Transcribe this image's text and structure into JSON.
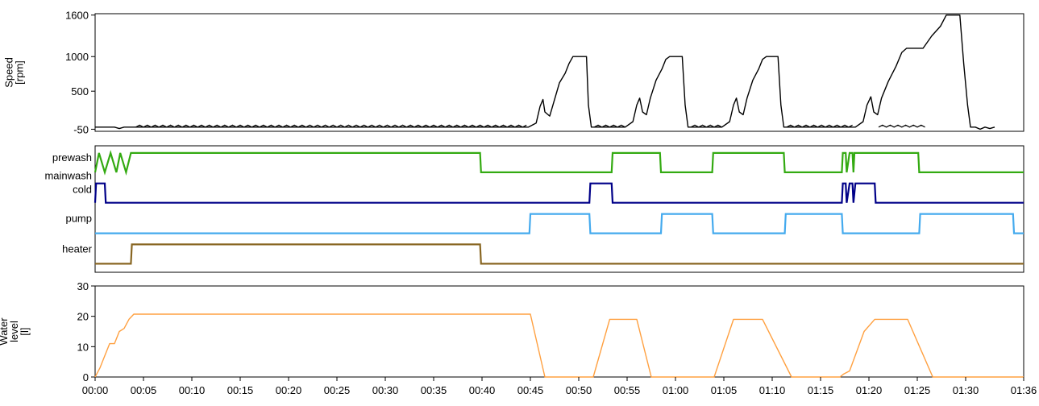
{
  "chart_data": [
    {
      "type": "line",
      "ylabel_lines": [
        "Speed",
        "[rpm]"
      ],
      "yticks": [
        {
          "value": 1600,
          "label": "1600"
        },
        {
          "value": 1000,
          "label": "1000"
        },
        {
          "value": 500,
          "label": "500"
        },
        {
          "value": -50,
          "label": "-50"
        }
      ],
      "xlim": [
        0,
        96
      ],
      "ylim": [
        -80,
        1620
      ],
      "colors": {
        "line": "#000000"
      },
      "series": [
        {
          "points": [
            [
              0,
              -20
            ],
            [
              2,
              -20
            ],
            [
              2.5,
              -40
            ],
            [
              3,
              -20
            ],
            [
              4,
              -20
            ],
            [
              44.8,
              -20
            ],
            [
              45.6,
              40
            ],
            [
              46,
              280
            ],
            [
              46.3,
              380
            ],
            [
              46.5,
              200
            ],
            [
              47,
              140
            ],
            [
              47.5,
              380
            ],
            [
              48,
              620
            ],
            [
              48.6,
              760
            ],
            [
              49,
              900
            ],
            [
              49.4,
              1000
            ],
            [
              50.8,
              1000
            ],
            [
              51,
              300
            ],
            [
              51.3,
              -20
            ],
            [
              54.8,
              -20
            ],
            [
              55.6,
              60
            ],
            [
              56,
              300
            ],
            [
              56.3,
              400
            ],
            [
              56.6,
              200
            ],
            [
              57,
              160
            ],
            [
              57.4,
              400
            ],
            [
              58,
              660
            ],
            [
              58.6,
              820
            ],
            [
              59,
              960
            ],
            [
              59.4,
              1000
            ],
            [
              60.7,
              1000
            ],
            [
              61,
              300
            ],
            [
              61.3,
              -20
            ],
            [
              64.8,
              -20
            ],
            [
              65.6,
              60
            ],
            [
              66,
              300
            ],
            [
              66.3,
              400
            ],
            [
              66.6,
              200
            ],
            [
              67,
              160
            ],
            [
              67.4,
              400
            ],
            [
              68,
              660
            ],
            [
              68.6,
              820
            ],
            [
              69,
              960
            ],
            [
              69.4,
              1000
            ],
            [
              70.6,
              1000
            ],
            [
              70.9,
              300
            ],
            [
              71.2,
              -20
            ],
            [
              78.6,
              -20
            ],
            [
              79.4,
              60
            ],
            [
              79.8,
              300
            ],
            [
              80.2,
              420
            ],
            [
              80.5,
              200
            ],
            [
              80.9,
              160
            ],
            [
              81.3,
              400
            ],
            [
              82,
              640
            ],
            [
              82.8,
              860
            ],
            [
              83.4,
              1060
            ],
            [
              83.9,
              1120
            ],
            [
              85.6,
              1120
            ],
            [
              86.5,
              1300
            ],
            [
              87.4,
              1440
            ],
            [
              88,
              1600
            ],
            [
              89.4,
              1600
            ],
            [
              89.8,
              900
            ],
            [
              90.2,
              300
            ],
            [
              90.5,
              -20
            ],
            [
              91,
              -20
            ],
            [
              91.5,
              -50
            ],
            [
              92,
              -20
            ],
            [
              92.5,
              -40
            ],
            [
              93,
              -20
            ]
          ]
        }
      ]
    },
    {
      "type": "line",
      "ylim": [
        -1,
        1
      ],
      "xlim": [
        0,
        96
      ],
      "channels": [
        {
          "name": "prewash",
          "label_lines": [
            "prewash"
          ],
          "color": "#33aa11",
          "transitions": [
            [
              0,
              0
            ],
            [
              0.4,
              1
            ],
            [
              1,
              0
            ],
            [
              1.6,
              1
            ],
            [
              2.2,
              0
            ],
            [
              2.6,
              1
            ],
            [
              3.2,
              0
            ],
            [
              3.7,
              1
            ],
            [
              39.8,
              1
            ],
            [
              39.9,
              0
            ],
            [
              53.4,
              0
            ],
            [
              53.5,
              1
            ],
            [
              58.4,
              1
            ],
            [
              58.5,
              0
            ],
            [
              63.8,
              0
            ],
            [
              63.9,
              1
            ],
            [
              71.2,
              1
            ],
            [
              71.3,
              0
            ],
            [
              77.2,
              0
            ],
            [
              77.3,
              1
            ],
            [
              77.6,
              1
            ],
            [
              77.7,
              0
            ],
            [
              78,
              1
            ],
            [
              78.3,
              1
            ],
            [
              78.4,
              0
            ],
            [
              78.5,
              1
            ],
            [
              85.1,
              1
            ],
            [
              85.2,
              0
            ],
            [
              96,
              0
            ]
          ]
        },
        {
          "name": "mainwash cold",
          "label_lines": [
            "mainwash",
            "cold"
          ],
          "color": "#000088",
          "transitions": [
            [
              0,
              0
            ],
            [
              0.1,
              1
            ],
            [
              1,
              1
            ],
            [
              1.1,
              0
            ],
            [
              51.1,
              0
            ],
            [
              51.2,
              1
            ],
            [
              53.4,
              1
            ],
            [
              53.5,
              0
            ],
            [
              77.2,
              0
            ],
            [
              77.3,
              1
            ],
            [
              77.6,
              1
            ],
            [
              77.7,
              0
            ],
            [
              78,
              1
            ],
            [
              78.3,
              1
            ],
            [
              78.4,
              0
            ],
            [
              78.6,
              1
            ],
            [
              80.6,
              1
            ],
            [
              80.7,
              0
            ],
            [
              96,
              0
            ]
          ]
        },
        {
          "name": "pump",
          "label_lines": [
            "pump"
          ],
          "color": "#44aaee",
          "transitions": [
            [
              0,
              0
            ],
            [
              44.9,
              0
            ],
            [
              45,
              1
            ],
            [
              51.1,
              1
            ],
            [
              51.2,
              0
            ],
            [
              58.5,
              0
            ],
            [
              58.6,
              1
            ],
            [
              63.8,
              1
            ],
            [
              63.9,
              0
            ],
            [
              71.3,
              0
            ],
            [
              71.4,
              1
            ],
            [
              77.2,
              1
            ],
            [
              77.3,
              0
            ],
            [
              85.2,
              0
            ],
            [
              85.3,
              1
            ],
            [
              94.9,
              1
            ],
            [
              95,
              0
            ],
            [
              96,
              0
            ]
          ]
        },
        {
          "name": "heater",
          "label_lines": [
            "heater"
          ],
          "color": "#886622",
          "transitions": [
            [
              0,
              0
            ],
            [
              3.7,
              0
            ],
            [
              3.8,
              1
            ],
            [
              39.8,
              1
            ],
            [
              39.9,
              0
            ],
            [
              96,
              0
            ]
          ]
        }
      ]
    },
    {
      "type": "line",
      "ylabel_lines": [
        "Water",
        "level",
        "[l]"
      ],
      "yticks": [
        {
          "value": 30,
          "label": "30"
        },
        {
          "value": 20,
          "label": "20"
        },
        {
          "value": 10,
          "label": "10"
        },
        {
          "value": 0,
          "label": "0"
        }
      ],
      "xlim": [
        0,
        96
      ],
      "ylim": [
        0,
        30
      ],
      "colors": {
        "line": "#ffa040"
      },
      "x_tick_labels": [
        "00:00",
        "00:05",
        "00:10",
        "00:15",
        "00:20",
        "00:25",
        "00:30",
        "00:35",
        "00:40",
        "00:45",
        "00:50",
        "00:55",
        "01:00",
        "01:05",
        "01:10",
        "01:15",
        "01:20",
        "01:25",
        "01:30",
        "01:36"
      ],
      "series": [
        {
          "points": [
            [
              0,
              0
            ],
            [
              0.5,
              3
            ],
            [
              1,
              7
            ],
            [
              1.5,
              11
            ],
            [
              2,
              11
            ],
            [
              2.5,
              15
            ],
            [
              3,
              16
            ],
            [
              3.5,
              19
            ],
            [
              4,
              20.7
            ],
            [
              45,
              20.7
            ],
            [
              46.5,
              0
            ],
            [
              51.5,
              0
            ],
            [
              53.2,
              19
            ],
            [
              56,
              19
            ],
            [
              57.5,
              0
            ],
            [
              64,
              0
            ],
            [
              66,
              19
            ],
            [
              69,
              19
            ],
            [
              72,
              0
            ],
            [
              77,
              0
            ],
            [
              77.4,
              1
            ],
            [
              78,
              2
            ],
            [
              79.5,
              15
            ],
            [
              80.6,
              19
            ],
            [
              84,
              19
            ],
            [
              86.6,
              0
            ],
            [
              96,
              0
            ]
          ]
        }
      ]
    }
  ]
}
